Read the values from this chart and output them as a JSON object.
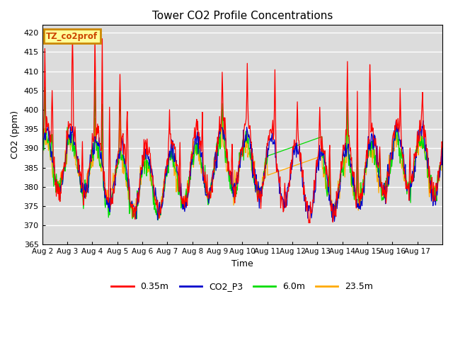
{
  "title": "Tower CO2 Profile Concentrations",
  "xlabel": "Time",
  "ylabel": "CO2 (ppm)",
  "ylim": [
    365,
    422
  ],
  "yticks": [
    365,
    370,
    375,
    380,
    385,
    390,
    395,
    400,
    405,
    410,
    415,
    420
  ],
  "xtick_labels": [
    "Aug 2",
    "Aug 3",
    "Aug 4",
    "Aug 5",
    "Aug 6",
    "Aug 7",
    "Aug 8",
    "Aug 9",
    "Aug 10",
    "Aug 11",
    "Aug 12",
    "Aug 13",
    "Aug 14",
    "Aug 15",
    "Aug 16",
    "Aug 17"
  ],
  "colors": {
    "0.35m": "#ff0000",
    "CO2_P3": "#0000cc",
    "6.0m": "#00dd00",
    "23.5m": "#ffaa00"
  },
  "bg_color": "#dcdcdc",
  "grid_color": "#ffffff",
  "annotation_text": "TZ_co2prof",
  "annotation_bg": "#ffff99",
  "annotation_edge": "#cc8800",
  "figsize": [
    6.4,
    4.8
  ],
  "dpi": 100
}
